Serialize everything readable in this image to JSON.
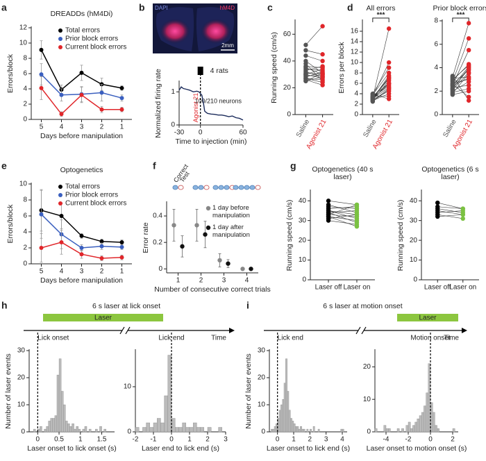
{
  "chart_data": [
    {
      "panel": "a",
      "type": "line",
      "title": "DREADDs (hM4Di)",
      "ylabel": "Errors/block",
      "xlabel": "Days before manipulation",
      "categories": [
        "5",
        "4",
        "3",
        "2",
        "1"
      ],
      "ylim": [
        0,
        12
      ],
      "yticks": [
        0,
        2,
        4,
        6,
        8,
        10,
        12
      ],
      "series": [
        {
          "name": "Total errors",
          "color": "#000000",
          "values": [
            9.1,
            3.9,
            6.1,
            4.6,
            4.1
          ],
          "errors": [
            1.2,
            0.6,
            1.0,
            0.8,
            0.3
          ]
        },
        {
          "name": "Prior block errors",
          "color": "#3a5fbf",
          "values": [
            5.9,
            3.2,
            3.3,
            3.5,
            2.8
          ],
          "errors": [
            1.4,
            0.8,
            1.0,
            1.1,
            0.4
          ]
        },
        {
          "name": "Current block errors",
          "color": "#e0262a",
          "values": [
            4.1,
            0.7,
            3.2,
            1.3,
            1.3
          ],
          "errors": [
            1.5,
            0.3,
            1.0,
            0.4,
            0.3
          ]
        }
      ]
    },
    {
      "panel": "b",
      "type": "image",
      "stain_labels": [
        "DAPI",
        "hM4D"
      ],
      "scale_label": "2mm"
    },
    {
      "type": "xy",
      "title": "4 rats",
      "ylabel": "Normalized firing rate",
      "xlabel": "Time to injection (min)",
      "marker_label": "Agonist 21",
      "note": "100/210 neurons",
      "color": "#1a2a5a",
      "x": [
        -30,
        -27,
        -24,
        -20,
        -15,
        -10,
        -5,
        -2,
        0,
        2,
        4,
        6,
        8,
        10,
        15,
        20,
        25,
        30,
        35,
        40,
        45,
        50,
        55,
        60
      ],
      "values": [
        1.05,
        1.15,
        1.1,
        1.08,
        1.05,
        1.0,
        1.02,
        1.0,
        0.95,
        0.9,
        0.7,
        0.42,
        0.38,
        0.35,
        0.33,
        0.32,
        0.3,
        0.3,
        0.28,
        0.25,
        0.27,
        0.22,
        0.2,
        0.15
      ],
      "xlim": [
        -30,
        60
      ],
      "xticks": [
        -30,
        0,
        60
      ],
      "ylim": [
        0,
        1.3
      ],
      "yticks": [
        0,
        1
      ]
    },
    {
      "panel": "c",
      "type": "paired",
      "ylabel": "Running speed (cm/s)",
      "ylim": [
        0,
        70
      ],
      "yticks": [
        0,
        20,
        40,
        60
      ],
      "series": [
        {
          "name": "Saline",
          "color": "#555555",
          "values": [
            52,
            48,
            44,
            40,
            38,
            36,
            35,
            34,
            33,
            32,
            31,
            30,
            30,
            29,
            28,
            27,
            27,
            26,
            25,
            25
          ]
        },
        {
          "name": "Agonist 21",
          "color": "#e0262a",
          "values": [
            66,
            45,
            40,
            31,
            25,
            35,
            30,
            33,
            36,
            28,
            30,
            27,
            34,
            29,
            32,
            24,
            26,
            22,
            31,
            28
          ]
        }
      ]
    },
    {
      "panel": "d",
      "type": "paired",
      "title": "All errors",
      "ylabel": "Errors per block",
      "annotation": "***",
      "ylim": [
        0,
        18
      ],
      "yticks": [
        0,
        2,
        4,
        6,
        8,
        10,
        12,
        14,
        16
      ],
      "series": [
        {
          "name": "Saline",
          "color": "#555555",
          "values": [
            3.2,
            3.5,
            3.0,
            2.8,
            3.8,
            3.3,
            2.6,
            3.1,
            4.0,
            2.9,
            3.4,
            3.6,
            2.7,
            3.0,
            3.2,
            3.9,
            2.5,
            3.3,
            3.1,
            3.5
          ]
        },
        {
          "name": "Agonist 21",
          "color": "#e0262a",
          "values": [
            16.5,
            10,
            7.5,
            6.5,
            8,
            7,
            5,
            6,
            9,
            4.5,
            5.5,
            6,
            4,
            7.2,
            5.8,
            3,
            4.8,
            6.8,
            5.2,
            3.5
          ]
        }
      ]
    },
    {
      "type": "paired",
      "title": "Prior block errors",
      "annotation": "***",
      "ylim": [
        0,
        8
      ],
      "yticks": [
        0,
        2,
        4,
        6,
        8
      ],
      "series": [
        {
          "name": "Saline",
          "color": "#555555",
          "values": [
            3.2,
            2.8,
            2.5,
            3.0,
            2.2,
            2.6,
            1.8,
            2.4,
            3.1,
            2.0,
            2.7,
            2.3,
            1.9,
            2.9,
            2.1,
            2.5,
            3.3,
            1.7,
            2.6,
            2.2
          ]
        },
        {
          "name": "Agonist 21",
          "color": "#e0262a",
          "values": [
            7.8,
            6.5,
            5.5,
            4.2,
            4.0,
            3.8,
            3.5,
            4.1,
            3.2,
            2.8,
            3.0,
            2.5,
            2.2,
            4.3,
            3.6,
            3.1,
            1.2,
            2.0,
            1.5,
            3.9
          ]
        }
      ]
    },
    {
      "panel": "e",
      "type": "line",
      "title": "Optogenetics",
      "ylabel": "Errors/block",
      "xlabel": "Days before manipulation",
      "categories": [
        "5",
        "4",
        "3",
        "2",
        "1"
      ],
      "ylim": [
        0,
        10
      ],
      "yticks": [
        0,
        2,
        4,
        6,
        8,
        10
      ],
      "series": [
        {
          "name": "Total errors",
          "color": "#000000",
          "values": [
            6.7,
            6.0,
            3.5,
            2.8,
            2.7
          ],
          "errors": [
            2.6,
            1.6,
            0.3,
            0.3,
            0.3
          ]
        },
        {
          "name": "Prior block errors",
          "color": "#3a5fbf",
          "values": [
            6.2,
            3.7,
            2.0,
            2.2,
            2.1
          ],
          "errors": [
            3.0,
            1.8,
            0.4,
            0.4,
            0.3
          ]
        },
        {
          "name": "Current block errors",
          "color": "#e0262a",
          "values": [
            2.0,
            2.7,
            1.2,
            0.7,
            0.8
          ],
          "errors": [
            1.8,
            1.5,
            0.5,
            0.3,
            0.3
          ]
        }
      ]
    },
    {
      "panel": "f",
      "type": "dots",
      "ylabel": "Error rate",
      "xlabel": "Number of consecutive correct trials",
      "icon_labels": [
        "Correct",
        "Test"
      ],
      "categories": [
        "1",
        "2",
        "3",
        "4"
      ],
      "ylim": [
        -0.03,
        0.5
      ],
      "yticks": [
        0,
        0.2,
        0.4
      ],
      "series": [
        {
          "name": "1 day before manipulation",
          "color": "#888888",
          "values": [
            0.33,
            0.33,
            0.065,
            0.0
          ],
          "errors": [
            0.12,
            0.12,
            0.05,
            0.005
          ]
        },
        {
          "name": "1 day after manipulation",
          "color": "#111111",
          "values": [
            0.17,
            0.26,
            0.04,
            0.0
          ],
          "errors": [
            0.08,
            0.1,
            0.03,
            0.005
          ]
        }
      ]
    },
    {
      "panel": "g",
      "type": "paired",
      "title": "Optogenetics (40 s laser)",
      "ylabel": "Running speed (cm/s)",
      "ylim": [
        0,
        45
      ],
      "yticks": [
        0,
        10,
        20,
        30,
        40
      ],
      "series": [
        {
          "name": "Laser off",
          "color": "#000000",
          "values": [
            40,
            38,
            37,
            36,
            35,
            35,
            34,
            34,
            33,
            33,
            32,
            32,
            31,
            30
          ]
        },
        {
          "name": "Laser on",
          "color": "#7bc142",
          "values": [
            38,
            34,
            36,
            37,
            33,
            31,
            35,
            29,
            32,
            38,
            27,
            30,
            33,
            28
          ]
        }
      ]
    },
    {
      "type": "paired",
      "title": "Optogenetics (6 s laser)",
      "ylabel": "Running speed (cm/s)",
      "ylim": [
        0,
        45
      ],
      "yticks": [
        0,
        10,
        20,
        30,
        40
      ],
      "series": [
        {
          "name": "Laser off",
          "color": "#000000",
          "values": [
            39,
            37,
            36,
            35,
            34,
            33,
            32
          ]
        },
        {
          "name": "Laser on",
          "color": "#7bc142",
          "values": [
            36,
            36,
            34,
            33,
            35,
            31,
            33
          ]
        }
      ]
    },
    {
      "panel": "h",
      "type": "timeline",
      "title": "6 s laser at lick onset",
      "bar_label": "Laser",
      "bar_color": "#8cc63f",
      "events": [
        "Lick onset",
        "Lick end"
      ],
      "end_label": "Time"
    },
    {
      "type": "histogram",
      "ylabel": "Number of laser events",
      "xlabel": "Laser onset to lick onset (s)",
      "color": "#bbbbbb",
      "bins": [
        -0.1,
        -0.05,
        0,
        0.05,
        0.1,
        0.15,
        0.2,
        0.25,
        0.3,
        0.35,
        0.4,
        0.45,
        0.5,
        0.55,
        0.6,
        0.65,
        0.7,
        0.75,
        0.8,
        0.85,
        0.9,
        0.95,
        1,
        1.05,
        1.1,
        1.15,
        1.2,
        1.25,
        1.3,
        1.35,
        1.4,
        1.45,
        1.5,
        1.55,
        1.6,
        1.65,
        1.7
      ],
      "values": [
        1,
        0,
        1,
        2,
        0,
        1,
        2,
        4,
        5,
        5,
        6,
        21,
        27,
        15,
        10,
        4,
        3,
        2,
        3,
        1,
        2,
        1,
        0,
        1,
        2,
        0,
        1,
        0,
        0,
        1,
        0,
        2,
        0,
        1,
        0,
        0
      ],
      "xlim": [
        -0.2,
        1.8
      ],
      "xticks": [
        0,
        0.5,
        1,
        1.5
      ],
      "ylim": [
        0,
        30
      ],
      "yticks": [
        0,
        10,
        20,
        30
      ]
    },
    {
      "type": "histogram",
      "xlabel": "Laser end to lick end (s)",
      "color": "#bbbbbb",
      "bins": [
        -2,
        -1.8,
        -1.6,
        -1.4,
        -1.2,
        -1,
        -0.8,
        -0.6,
        -0.4,
        -0.2,
        0,
        0.2,
        0.4,
        0.6,
        0.8,
        1,
        1.2,
        1.4,
        1.6,
        1.8,
        2,
        2.2,
        2.4,
        2.6,
        2.8,
        3
      ],
      "values": [
        1,
        0,
        1,
        2,
        1,
        2,
        3,
        2,
        8,
        17,
        3,
        1,
        1,
        2,
        1,
        1,
        2,
        1,
        1,
        0,
        1,
        0,
        0,
        1,
        0
      ],
      "xlim": [
        -2,
        3
      ],
      "xticks": [
        -2,
        -1,
        0,
        1,
        2,
        3
      ],
      "ylim": [
        0,
        18
      ],
      "yticks": [
        0,
        10
      ]
    },
    {
      "panel": "i",
      "type": "timeline",
      "title": "6 s laser at motion onset",
      "bar_label": "Laser",
      "bar_color": "#8cc63f",
      "events": [
        "Lick end",
        "Motion onset"
      ],
      "end_label": "Time"
    },
    {
      "type": "histogram",
      "ylabel": "Number of laser events",
      "xlabel": "Laser onset to lick end (s)",
      "color": "#bbbbbb",
      "bins": [
        -0.4,
        -0.3,
        -0.2,
        -0.1,
        0,
        0.1,
        0.2,
        0.3,
        0.4,
        0.5,
        0.6,
        0.7,
        0.8,
        0.9,
        1,
        1.1,
        1.2,
        1.3,
        1.4,
        1.5,
        1.6,
        1.7,
        1.8,
        1.9,
        2,
        2.1,
        2.2,
        2.3,
        2.4,
        2.5,
        2.6,
        2.7,
        2.8,
        2.9,
        3,
        3.1,
        3.2,
        3.3,
        3.4,
        3.5,
        3.6,
        3.7,
        3.8,
        3.9,
        4,
        4.1,
        4.2
      ],
      "values": [
        1,
        1,
        2,
        3,
        5,
        8,
        10,
        12,
        18,
        27,
        15,
        8,
        5,
        4,
        3,
        2,
        2,
        1,
        2,
        1,
        1,
        0,
        1,
        0,
        1,
        0,
        2,
        0,
        0,
        1,
        0,
        0,
        0,
        0,
        0,
        0,
        0,
        0,
        0,
        0,
        0,
        0,
        0,
        1,
        1,
        0
      ],
      "xlim": [
        -0.5,
        4.3
      ],
      "xticks": [
        0,
        1,
        2,
        3,
        4
      ],
      "ylim": [
        0,
        30
      ],
      "yticks": [
        0,
        10,
        20,
        30
      ]
    },
    {
      "type": "histogram",
      "xlabel": "Laser onset to motion onset (s)",
      "color": "#bbbbbb",
      "bins": [
        -5,
        -4.8,
        -4.6,
        -4.4,
        -4.2,
        -4,
        -3.8,
        -3.6,
        -3.4,
        -3.2,
        -3,
        -2.8,
        -2.6,
        -2.4,
        -2.2,
        -2,
        -1.8,
        -1.6,
        -1.4,
        -1.2,
        -1,
        -0.8,
        -0.6,
        -0.4,
        -0.2,
        0,
        0.2,
        0.4,
        0.6,
        0.8,
        1,
        1.2,
        1.4,
        1.6,
        1.8,
        2,
        2.2,
        2.4
      ],
      "values": [
        1,
        0,
        0,
        0,
        2,
        1,
        1,
        0,
        0,
        0,
        1,
        0,
        1,
        0,
        2,
        3,
        1,
        2,
        3,
        4,
        5,
        6,
        8,
        12,
        21,
        9,
        6,
        2,
        1,
        0,
        0,
        0,
        0,
        0,
        0,
        1,
        0
      ],
      "xlim": [
        -5,
        2.5
      ],
      "xticks": [
        -4,
        -2,
        0,
        2
      ],
      "ylim": [
        0,
        25
      ],
      "yticks": [
        0,
        10,
        20
      ]
    }
  ]
}
